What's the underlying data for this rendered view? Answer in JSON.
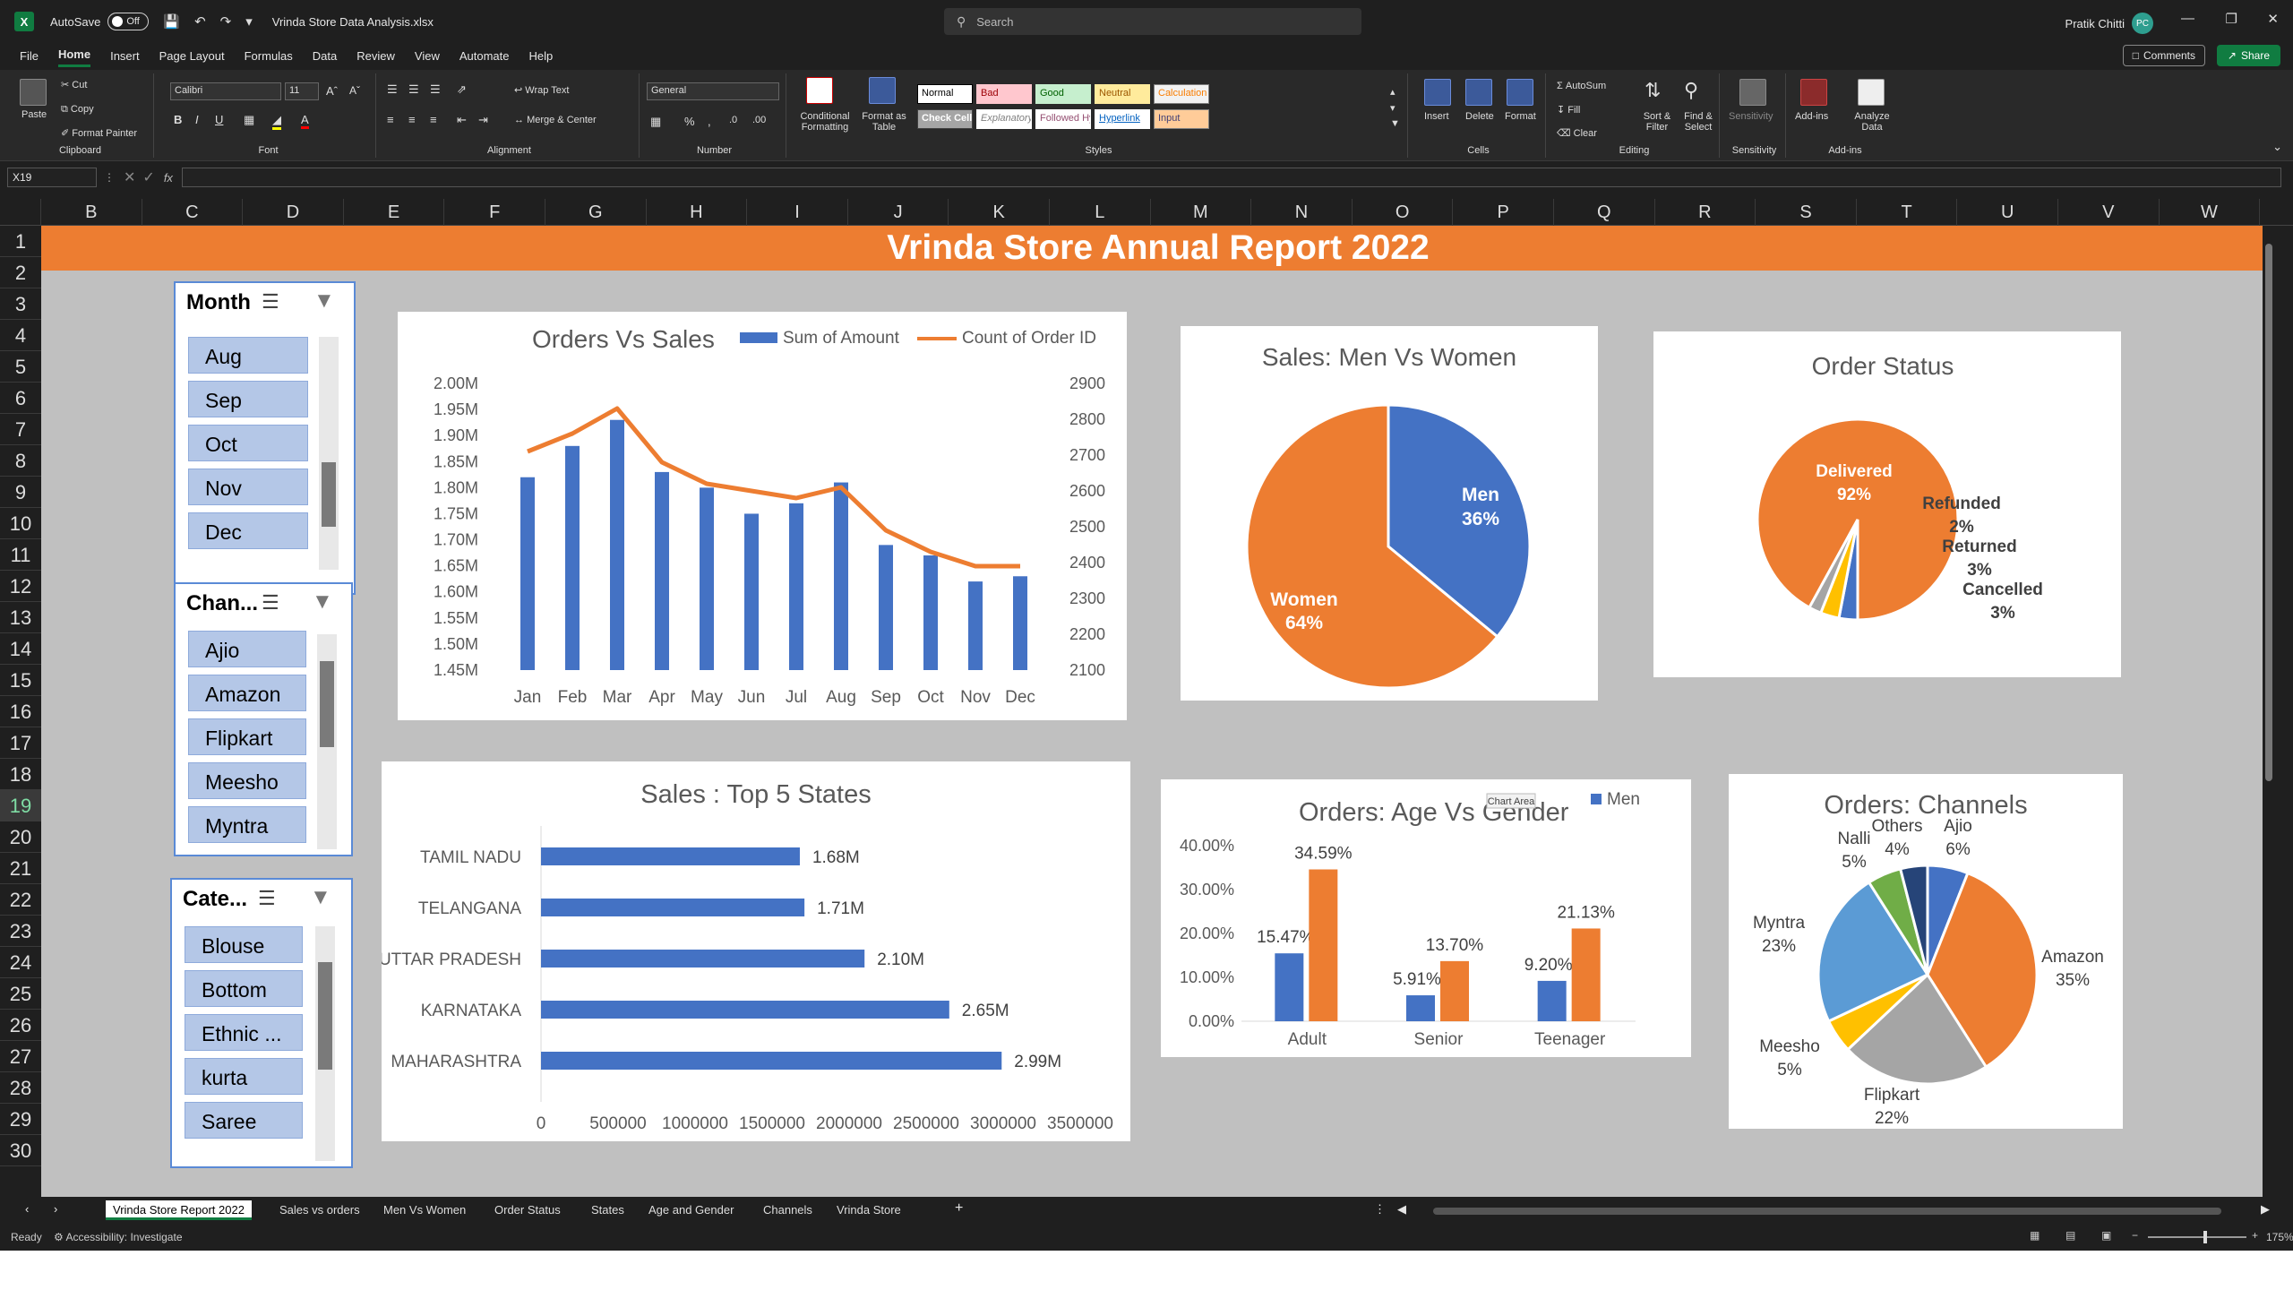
{
  "titlebar": {
    "app_logo": "X",
    "autosave_label": "AutoSave",
    "autosave_state": "Off",
    "filename": "Vrinda Store Data Analysis.xlsx",
    "search_placeholder": "Search",
    "user_name": "Pratik Chitti",
    "user_initials": "PC"
  },
  "menu": {
    "items": [
      "File",
      "Home",
      "Insert",
      "Page Layout",
      "Formulas",
      "Data",
      "Review",
      "View",
      "Automate",
      "Help"
    ],
    "active": "Home",
    "comments_label": "Comments",
    "share_label": "Share"
  },
  "ribbon": {
    "clipboard": {
      "label": "Clipboard",
      "paste": "Paste",
      "cut": "Cut",
      "copy": "Copy",
      "format_painter": "Format Painter"
    },
    "font": {
      "label": "Font",
      "name": "Calibri",
      "size": "11"
    },
    "alignment": {
      "label": "Alignment",
      "wrap": "Wrap Text",
      "merge": "Merge & Center"
    },
    "number": {
      "label": "Number",
      "format": "General"
    },
    "styles": {
      "label": "Styles",
      "cond_format": "Conditional Formatting",
      "format_table": "Format as Table",
      "cells": [
        "Normal",
        "Bad",
        "Good",
        "Neutral",
        "Calculation",
        "Check Cell",
        "Explanatory ...",
        "Followed Hy...",
        "Hyperlink",
        "Input"
      ]
    },
    "cells": {
      "label": "Cells",
      "insert": "Insert",
      "delete": "Delete",
      "format": "Format"
    },
    "editing": {
      "label": "Editing",
      "autosum": "AutoSum",
      "fill": "Fill",
      "clear": "Clear",
      "sort": "Sort & Filter",
      "find": "Find & Select"
    },
    "sensitivity": {
      "label": "Sensitivity",
      "btn": "Sensitivity"
    },
    "addins": {
      "label": "Add-ins",
      "btn": "Add-ins",
      "analyze": "Analyze Data"
    }
  },
  "formula": {
    "cell_ref": "X19",
    "fx": "fx",
    "content": ""
  },
  "columns": [
    "B",
    "C",
    "D",
    "E",
    "F",
    "G",
    "H",
    "I",
    "J",
    "K",
    "L",
    "M",
    "N",
    "O",
    "P",
    "Q",
    "R",
    "S",
    "T",
    "U",
    "V",
    "W"
  ],
  "rows": [
    "1",
    "2",
    "3",
    "4",
    "5",
    "6",
    "7",
    "8",
    "9",
    "10",
    "11",
    "12",
    "13",
    "14",
    "15",
    "16",
    "17",
    "18",
    "19",
    "20",
    "21",
    "22",
    "23",
    "24",
    "25",
    "26",
    "27",
    "28",
    "29",
    "30"
  ],
  "selected_row": "19",
  "report_title": "Vrinda Store Annual Report 2022",
  "slicers": {
    "month": {
      "title": "Month",
      "items": [
        "Aug",
        "Sep",
        "Oct",
        "Nov",
        "Dec"
      ]
    },
    "channel": {
      "title": "Chan...",
      "items": [
        "Ajio",
        "Amazon",
        "Flipkart",
        "Meesho",
        "Myntra"
      ]
    },
    "category": {
      "title": "Cate...",
      "items": [
        "Blouse",
        "Bottom",
        "Ethnic ...",
        "kurta",
        "Saree"
      ]
    }
  },
  "colors": {
    "blue": "#4472c4",
    "orange": "#ed7d31",
    "gray": "#a5a5a5",
    "yellow": "#ffc000",
    "lightblue": "#5b9bd5",
    "green": "#70ad47",
    "navy": "#264478"
  },
  "chart_data": [
    {
      "type": "bar+line",
      "title": "Orders Vs Sales",
      "categories": [
        "Jan",
        "Feb",
        "Mar",
        "Apr",
        "May",
        "Jun",
        "Jul",
        "Aug",
        "Sep",
        "Oct",
        "Nov",
        "Dec"
      ],
      "series": [
        {
          "name": "Sum of Amount",
          "type": "bar",
          "axis": "left",
          "values": [
            1.82,
            1.88,
            1.93,
            1.83,
            1.8,
            1.75,
            1.77,
            1.81,
            1.69,
            1.67,
            1.62,
            1.63
          ]
        },
        {
          "name": "Count of Order ID",
          "type": "line",
          "axis": "right",
          "values": [
            2710,
            2760,
            2830,
            2680,
            2620,
            2600,
            2580,
            2610,
            2490,
            2430,
            2390,
            2390
          ]
        }
      ],
      "y_left_ticks": [
        "2.00M",
        "1.95M",
        "1.90M",
        "1.85M",
        "1.80M",
        "1.75M",
        "1.70M",
        "1.65M",
        "1.60M",
        "1.55M",
        "1.50M",
        "1.45M"
      ],
      "y_left_range": [
        1.45,
        2.0
      ],
      "y_right_ticks": [
        "2900",
        "2800",
        "2700",
        "2600",
        "2500",
        "2400",
        "2300",
        "2200",
        "2100"
      ],
      "y_right_range": [
        2100,
        2900
      ],
      "legend": "top"
    },
    {
      "type": "pie",
      "title": "Sales: Men Vs Women",
      "slices": [
        {
          "label": "Men",
          "pct_label": "36%",
          "value": 36
        },
        {
          "label": "Women",
          "pct_label": "64%",
          "value": 64
        }
      ]
    },
    {
      "type": "pie",
      "title": "Order Status",
      "slices": [
        {
          "label": "Delivered",
          "pct_label": "92%",
          "value": 92
        },
        {
          "label": "Refunded",
          "pct_label": "2%",
          "value": 2
        },
        {
          "label": "Returned",
          "pct_label": "3%",
          "value": 3
        },
        {
          "label": "Cancelled",
          "pct_label": "3%",
          "value": 3
        }
      ]
    },
    {
      "type": "bar",
      "orientation": "horizontal",
      "title": "Sales : Top 5 States",
      "categories": [
        "TAMIL NADU",
        "TELANGANA",
        "UTTAR PRADESH",
        "KARNATAKA",
        "MAHARASHTRA"
      ],
      "values": [
        1.68,
        1.71,
        2.1,
        2.65,
        2.99
      ],
      "value_labels": [
        "1.68M",
        "1.71M",
        "2.10M",
        "2.65M",
        "2.99M"
      ],
      "x_ticks": [
        "0",
        "500000",
        "1000000",
        "1500000",
        "2000000",
        "2500000",
        "3000000",
        "3500000"
      ],
      "xlim": [
        0,
        3500000
      ]
    },
    {
      "type": "bar",
      "title": "Orders: Age Vs Gender",
      "categories": [
        "Adult",
        "Senior",
        "Teenager"
      ],
      "series": [
        {
          "name": "Men",
          "values": [
            15.47,
            5.91,
            9.2
          ],
          "labels": [
            "15.47%",
            "5.91%",
            "9.20%"
          ]
        },
        {
          "values": [
            34.59,
            13.7,
            21.13
          ],
          "labels": [
            "34.59%",
            "13.70%",
            "21.13%"
          ]
        }
      ],
      "y_ticks": [
        "40.00%",
        "30.00%",
        "20.00%",
        "10.00%",
        "0.00%"
      ],
      "ylim": [
        0,
        40
      ],
      "tooltip": "Chart Area",
      "legend": "top-right"
    },
    {
      "type": "pie",
      "title": "Orders: Channels",
      "slices": [
        {
          "label": "Ajio",
          "pct_label": "6%",
          "value": 6
        },
        {
          "label": "Amazon",
          "pct_label": "35%",
          "value": 35
        },
        {
          "label": "Flipkart",
          "pct_label": "22%",
          "value": 22
        },
        {
          "label": "Meesho",
          "pct_label": "5%",
          "value": 5
        },
        {
          "label": "Myntra",
          "pct_label": "23%",
          "value": 23
        },
        {
          "label": "Nalli",
          "pct_label": "5%",
          "value": 5
        },
        {
          "label": "Others",
          "pct_label": "4%",
          "value": 4
        }
      ]
    }
  ],
  "sheet_tabs": [
    "Vrinda Store Report 2022",
    "Sales vs orders",
    "Men Vs Women",
    "Order Status",
    "States",
    "Age and Gender",
    "Channels",
    "Vrinda Store"
  ],
  "active_tab": "Vrinda Store Report 2022",
  "status": {
    "ready": "Ready",
    "accessibility": "Accessibility: Investigate",
    "zoom": "175%"
  }
}
